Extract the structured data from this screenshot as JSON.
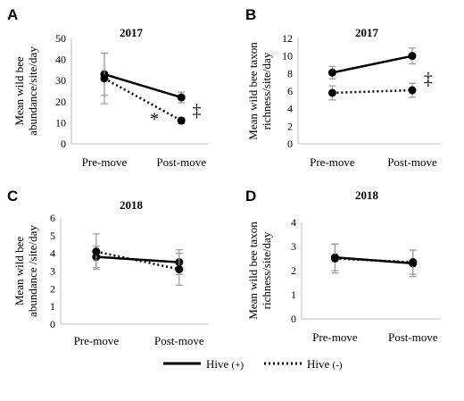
{
  "legend": {
    "solid": {
      "name": "Hive",
      "suffix": "(+)"
    },
    "dotted": {
      "name": "Hive",
      "suffix": "(-)"
    }
  },
  "chart_data": [
    {
      "type": "line",
      "letter": "A",
      "title": "2017",
      "ylabel": [
        "Mean wild bee",
        "abundance/site/day"
      ],
      "categories": [
        "Pre-move",
        "Post-move"
      ],
      "ylim": [
        0,
        50
      ],
      "yticks": [
        0,
        10,
        20,
        30,
        40,
        50
      ],
      "series": [
        {
          "key": "solid",
          "values": [
            33,
            22
          ],
          "errors": [
            10,
            2.5
          ]
        },
        {
          "key": "dotted",
          "values": [
            31,
            11
          ],
          "errors": [
            12,
            1.5
          ]
        }
      ],
      "annotations": [
        {
          "text": "*",
          "cat": 0.65,
          "y": 12
        },
        {
          "text": "‡",
          "cat": 1.2,
          "y": 16
        }
      ]
    },
    {
      "type": "line",
      "letter": "B",
      "title": "2017",
      "ylabel": [
        "Mean wild bee taxon",
        "richness/site/day"
      ],
      "categories": [
        "Pre-move",
        "Post-move"
      ],
      "ylim": [
        0,
        12
      ],
      "yticks": [
        0,
        2,
        4,
        6,
        8,
        10,
        12
      ],
      "series": [
        {
          "key": "solid",
          "values": [
            8.1,
            10
          ],
          "errors": [
            0.7,
            0.9
          ]
        },
        {
          "key": "dotted",
          "values": [
            5.8,
            6.1
          ],
          "errors": [
            0.8,
            0.8
          ]
        }
      ],
      "annotations": [
        {
          "text": "‡",
          "cat": 1.2,
          "y": 7.5
        }
      ]
    },
    {
      "type": "line",
      "letter": "C",
      "title": "2018",
      "ylabel": [
        "Mean wild bee",
        "abundance /site/day"
      ],
      "categories": [
        "Pre-move",
        "Post-move"
      ],
      "ylim": [
        0,
        6
      ],
      "yticks": [
        0,
        1,
        2,
        3,
        4,
        5,
        6
      ],
      "series": [
        {
          "key": "solid",
          "values": [
            3.8,
            3.5
          ],
          "errors": [
            0.6,
            0.7
          ]
        },
        {
          "key": "dotted",
          "values": [
            4.1,
            3.1
          ],
          "errors": [
            1.0,
            0.9
          ]
        }
      ],
      "annotations": []
    },
    {
      "type": "line",
      "letter": "D",
      "title": "2018",
      "ylabel": [
        "Mean wild bee taxon",
        "richness/site/day"
      ],
      "categories": [
        "Pre-move",
        "Post-move"
      ],
      "ylim": [
        0,
        4
      ],
      "yticks": [
        0,
        1,
        2,
        3,
        4
      ],
      "series": [
        {
          "key": "solid",
          "values": [
            2.55,
            2.3
          ],
          "errors": [
            0.55,
            0.55
          ]
        },
        {
          "key": "dotted",
          "values": [
            2.5,
            2.35
          ],
          "errors": [
            0.6,
            0.5
          ]
        }
      ],
      "annotations": []
    }
  ]
}
